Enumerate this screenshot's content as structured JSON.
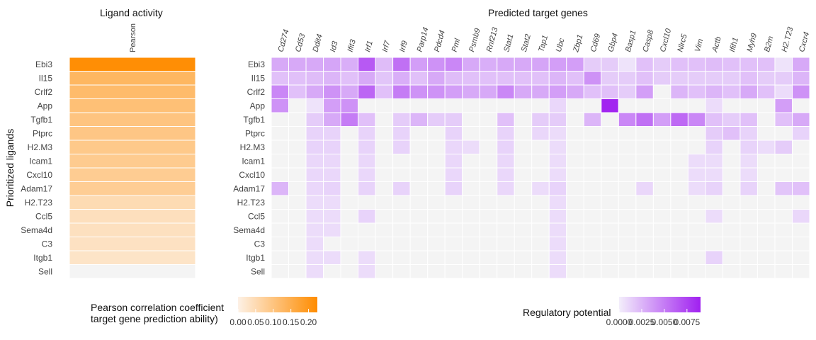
{
  "colors": {
    "activity_low": "#fdf1e6",
    "activity_high": "#ff8c00",
    "regulatory_low": "#f3eefb",
    "regulatory_high": "#a020f0",
    "empty_tile": "#f4f4f4",
    "background": "#ffffff"
  },
  "text": {
    "left_title": "Ligand activity",
    "right_title": "Predicted target genes",
    "y_axis_title": "Prioritized ligands",
    "left_legend_title_line1": "Pearson correlation coefficient",
    "left_legend_title_line2": "target gene prediction ability)",
    "right_legend_title": "Regulatory potential"
  },
  "chart_data": [
    {
      "type": "heatmap",
      "title": "Ligand activity",
      "x_categories": [
        "Pearson"
      ],
      "y_categories": [
        "Ebi3",
        "Il15",
        "Crlf2",
        "App",
        "Tgfb1",
        "Ptprc",
        "H2.M3",
        "Icam1",
        "Cxcl10",
        "Adam17",
        "H2.T23",
        "Ccl5",
        "Sema4d",
        "C3",
        "Itgb1",
        "Sell"
      ],
      "values": [
        0.22,
        0.13,
        0.12,
        0.11,
        0.1,
        0.095,
        0.09,
        0.085,
        0.082,
        0.08,
        0.05,
        0.04,
        0.038,
        0.035,
        0.03,
        0.0
      ],
      "ylabel": "Prioritized ligands",
      "legend": {
        "title": "Pearson correlation coefficient target gene prediction ability)",
        "ticks": [
          0.0,
          0.05,
          0.1,
          0.15,
          0.2
        ],
        "tick_labels": [
          "0.00",
          "0.05",
          "0.10",
          "0.15",
          "0.20"
        ],
        "range": [
          0.0,
          0.225
        ]
      }
    },
    {
      "type": "heatmap",
      "title": "Predicted target genes",
      "x_categories": [
        "Cd274",
        "Cd53",
        "Ddit4",
        "Id3",
        "Ifit3",
        "Irf1",
        "Irf7",
        "Irf9",
        "Parp14",
        "Pdcd4",
        "Pml",
        "Psmb9",
        "Rnf213",
        "Stat1",
        "Stat2",
        "Tap1",
        "Ubc",
        "Zbp1",
        "Cd69",
        "Gbp4",
        "Basp1",
        "Casp8",
        "Cxcl10",
        "Nlrc5",
        "Vim",
        "Actb",
        "Ifih1",
        "Myh9",
        "B2m",
        "H2.T23",
        "Cxcr4"
      ],
      "y_categories": [
        "Ebi3",
        "Il15",
        "Crlf2",
        "App",
        "Tgfb1",
        "Ptprc",
        "H2.M3",
        "Icam1",
        "Cxcl10",
        "Adam17",
        "H2.T23",
        "Ccl5",
        "Sema4d",
        "C3",
        "Itgb1",
        "Sell"
      ],
      "values": [
        [
          0.003,
          0.003,
          0.003,
          0.0032,
          0.0028,
          0.0065,
          0.0022,
          0.0055,
          0.0035,
          0.004,
          0.0045,
          0.003,
          0.0028,
          0.003,
          0.003,
          0.0032,
          0.0035,
          0.0035,
          0.0015,
          0.0015,
          0.0005,
          0.002,
          0.0015,
          0.002,
          0.002,
          0.0022,
          0.002,
          0.002,
          0.002,
          0.0005,
          0.003
        ],
        [
          0.002,
          0.002,
          0.0022,
          0.0025,
          0.002,
          0.003,
          0.0018,
          0.0028,
          0.002,
          0.003,
          0.0022,
          0.002,
          0.002,
          0.002,
          0.002,
          0.002,
          0.0025,
          0.002,
          0.004,
          0.0015,
          0.0015,
          0.002,
          0.0015,
          0.0015,
          0.0015,
          0.0015,
          0.0015,
          0.002,
          0.0015,
          0.0015,
          0.0025
        ],
        [
          0.0045,
          0.002,
          0.003,
          0.004,
          0.003,
          0.006,
          0.002,
          0.005,
          0.004,
          0.004,
          0.0035,
          0.003,
          0.003,
          0.0045,
          0.003,
          0.003,
          0.0035,
          0.003,
          0.002,
          0.002,
          0.0015,
          0.0035,
          0.0,
          0.0025,
          0.002,
          0.0025,
          0.002,
          0.003,
          0.002,
          0.0008,
          0.004
        ],
        [
          0.004,
          0.0,
          0.0005,
          0.0035,
          0.004,
          0.0,
          0.0,
          0.0,
          0.0,
          0.0,
          0.0,
          0.0,
          0.0,
          0.0,
          0.0,
          0.0,
          0.001,
          0.0,
          0.0,
          0.0088,
          0.0,
          0.0,
          0.0,
          0.0,
          0.0,
          0.0008,
          0.0,
          0.0,
          0.0,
          0.0035,
          0.0
        ],
        [
          0.0,
          0.0,
          0.0015,
          0.003,
          0.005,
          0.002,
          0.0,
          0.0015,
          0.0025,
          0.0015,
          0.0015,
          0.0,
          0.0,
          0.002,
          0.0,
          0.0015,
          0.0015,
          0.0,
          0.0025,
          0.0,
          0.0045,
          0.0055,
          0.0035,
          0.0058,
          0.0045,
          0.002,
          0.0015,
          0.002,
          0.0,
          0.002,
          0.003
        ],
        [
          0.0,
          0.0,
          0.0012,
          0.0012,
          0.0,
          0.0012,
          0.0,
          0.0012,
          0.0,
          0.0,
          0.0012,
          0.0,
          0.0,
          0.0012,
          0.0,
          0.001,
          0.0008,
          0.0,
          0.0,
          0.0,
          0.0,
          0.0,
          0.0,
          0.0,
          0.0,
          0.0015,
          0.002,
          0.0012,
          0.0,
          0.0,
          0.0012
        ],
        [
          0.0,
          0.0,
          0.0012,
          0.0012,
          0.0,
          0.0012,
          0.0,
          0.0012,
          0.0,
          0.0,
          0.001,
          0.0008,
          0.0,
          0.0012,
          0.0,
          0.0,
          0.0008,
          0.0,
          0.0,
          0.0,
          0.0,
          0.0,
          0.0,
          0.0,
          0.0,
          0.0012,
          0.0,
          0.0012,
          0.0008,
          0.0015,
          0.0
        ],
        [
          0.0,
          0.0,
          0.001,
          0.001,
          0.0,
          0.001,
          0.0,
          0.0,
          0.0,
          0.0,
          0.001,
          0.0,
          0.0,
          0.001,
          0.0,
          0.0,
          0.0008,
          0.0,
          0.0,
          0.0,
          0.0,
          0.0,
          0.0,
          0.0,
          0.0008,
          0.0008,
          0.0,
          0.0008,
          0.0,
          0.0,
          0.0
        ],
        [
          0.0,
          0.0,
          0.001,
          0.001,
          0.0,
          0.001,
          0.0,
          0.0,
          0.0,
          0.0,
          0.001,
          0.0,
          0.0,
          0.001,
          0.0,
          0.0,
          0.0008,
          0.0,
          0.0,
          0.0,
          0.0,
          0.0,
          0.0,
          0.0,
          0.0008,
          0.0008,
          0.0,
          0.0008,
          0.0,
          0.0,
          0.0
        ],
        [
          0.0025,
          0.0,
          0.001,
          0.0012,
          0.0,
          0.0012,
          0.0,
          0.0012,
          0.0,
          0.0,
          0.0012,
          0.0,
          0.0,
          0.001,
          0.0,
          0.0008,
          0.0012,
          0.0,
          0.0,
          0.0,
          0.0,
          0.001,
          0.0,
          0.0,
          0.0008,
          0.0012,
          0.0,
          0.0012,
          0.0,
          0.0018,
          0.002
        ],
        [
          0.0,
          0.0,
          0.0008,
          0.0008,
          0.0,
          0.0,
          0.0,
          0.0,
          0.0,
          0.0,
          0.0,
          0.0,
          0.0,
          0.0,
          0.0,
          0.0,
          0.0008,
          0.0,
          0.0,
          0.0,
          0.0,
          0.0,
          0.0,
          0.0,
          0.0,
          0.0,
          0.0,
          0.0,
          0.0,
          0.0,
          0.0
        ],
        [
          0.0,
          0.0,
          0.0008,
          0.0008,
          0.0,
          0.0012,
          0.0,
          0.0,
          0.0,
          0.0,
          0.0,
          0.0,
          0.0,
          0.0,
          0.0,
          0.0,
          0.0008,
          0.0,
          0.0,
          0.0,
          0.0,
          0.0,
          0.0,
          0.0,
          0.0,
          0.0008,
          0.0,
          0.0,
          0.0,
          0.0,
          0.001
        ],
        [
          0.0,
          0.0,
          0.0008,
          0.0008,
          0.0,
          0.0,
          0.0,
          0.0,
          0.0,
          0.0,
          0.0,
          0.0,
          0.0,
          0.0,
          0.0,
          0.0,
          0.0008,
          0.0,
          0.0,
          0.0,
          0.0,
          0.0,
          0.0,
          0.0,
          0.0,
          0.0,
          0.0,
          0.0,
          0.0,
          0.0,
          0.0
        ],
        [
          0.0,
          0.0,
          0.0008,
          0.0,
          0.0,
          0.0,
          0.0,
          0.0,
          0.0,
          0.0,
          0.0,
          0.0,
          0.0,
          0.0,
          0.0,
          0.0,
          0.0008,
          0.0,
          0.0,
          0.0,
          0.0,
          0.0,
          0.0,
          0.0,
          0.0,
          0.0,
          0.0,
          0.0,
          0.0,
          0.0,
          0.0
        ],
        [
          0.0,
          0.0,
          0.0008,
          0.0008,
          0.0,
          0.0008,
          0.0,
          0.0,
          0.0,
          0.0,
          0.0,
          0.0,
          0.0,
          0.0,
          0.0,
          0.0,
          0.0008,
          0.0,
          0.0,
          0.0,
          0.0,
          0.0,
          0.0,
          0.0,
          0.0,
          0.0012,
          0.0,
          0.0,
          0.0,
          0.0,
          0.0
        ],
        [
          0.0,
          0.0,
          0.0008,
          0.0,
          0.0,
          0.0008,
          0.0,
          0.0,
          0.0,
          0.0,
          0.0,
          0.0,
          0.0,
          0.0,
          0.0,
          0.0,
          0.0008,
          0.0,
          0.0,
          0.0,
          0.0,
          0.0,
          0.0,
          0.0,
          0.0,
          0.0,
          0.0,
          0.0,
          0.0,
          0.0,
          0.0
        ]
      ],
      "legend": {
        "title": "Regulatory potential",
        "ticks": [
          0.0,
          0.0025,
          0.005,
          0.0075
        ],
        "tick_labels": [
          "0.0000",
          "0.0025",
          "0.0050",
          "0.0075"
        ],
        "range": [
          0.0,
          0.009
        ]
      }
    }
  ]
}
